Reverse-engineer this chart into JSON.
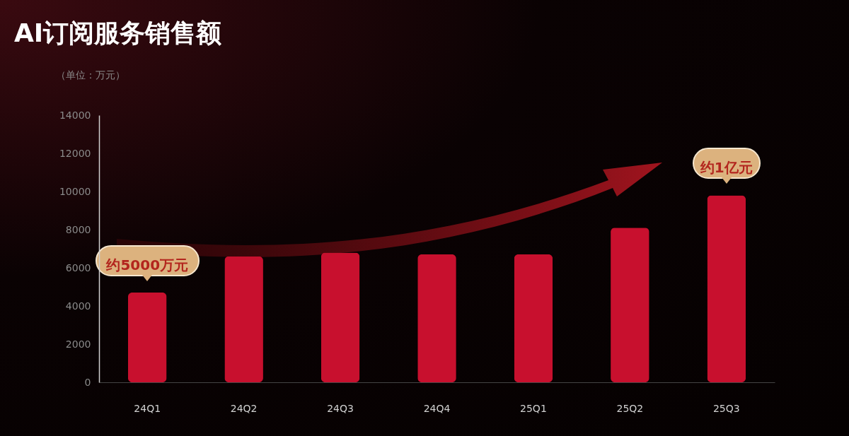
{
  "chart_data": {
    "type": "bar",
    "title": "AI订阅服务销售额",
    "ylabel": "（单位：万元）",
    "categories": [
      "24Q1",
      "24Q2",
      "24Q3",
      "24Q4",
      "25Q1",
      "25Q2",
      "25Q3"
    ],
    "values": [
      4700,
      6600,
      6800,
      6700,
      6700,
      8100,
      9800
    ],
    "color": "#c8102e",
    "ylim": [
      0,
      14000
    ],
    "yticks": [
      0,
      2000,
      4000,
      6000,
      8000,
      10000,
      12000,
      14000
    ],
    "annotations": [
      {
        "text": "约5000万元",
        "x": "24Q1",
        "y": 4700
      },
      {
        "text": "约1亿元",
        "x": "25Q3",
        "y": 9800
      }
    ]
  }
}
